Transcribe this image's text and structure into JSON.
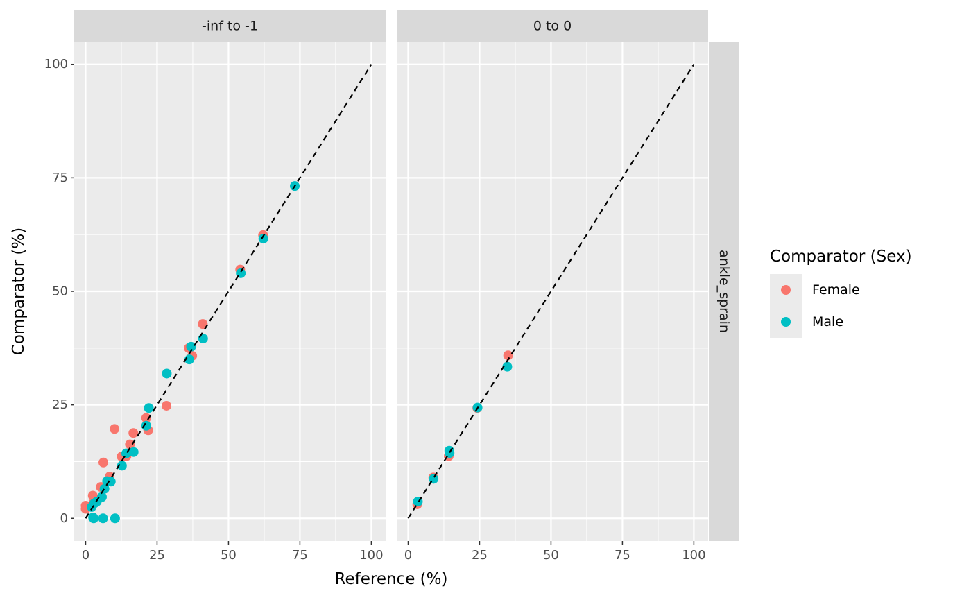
{
  "chart_data": {
    "type": "scatter",
    "xlabel": "Reference (%)",
    "ylabel": "Comparator (%)",
    "xlim": [
      -4,
      105
    ],
    "ylim": [
      -5,
      105
    ],
    "x_ticks": [
      0,
      25,
      50,
      75,
      100
    ],
    "y_ticks": [
      0,
      25,
      50,
      75,
      100
    ],
    "tick_labels": [
      "0",
      "25",
      "50",
      "75",
      "100"
    ],
    "grid": true,
    "reference_line": {
      "from": [
        0,
        0
      ],
      "to": [
        100,
        100
      ],
      "style": "dashed",
      "color": "#000000"
    },
    "row_strip": "ankle_sprain",
    "legend": {
      "title": "Comparator (Sex)",
      "placement": "right",
      "entries": [
        {
          "label": "Female",
          "color": "#F8766D"
        },
        {
          "label": "Male",
          "color": "#00BFC4"
        }
      ]
    },
    "panels": [
      {
        "strip": "-inf to -1",
        "series": [
          {
            "name": "Female",
            "color": "#F8766D",
            "points": [
              [
                0,
                2.8
              ],
              [
                0,
                2.1
              ],
              [
                2.5,
                5.0
              ],
              [
                2.9,
                3.6
              ],
              [
                5.3,
                6.9
              ],
              [
                6.2,
                12.3
              ],
              [
                8.4,
                9.2
              ],
              [
                10.1,
                19.7
              ],
              [
                12.6,
                13.6
              ],
              [
                14.3,
                13.7
              ],
              [
                15.5,
                16.3
              ],
              [
                16.7,
                18.8
              ],
              [
                21.2,
                22.1
              ],
              [
                21.9,
                19.4
              ],
              [
                28.3,
                24.8
              ],
              [
                36.1,
                37.5
              ],
              [
                37.3,
                35.8
              ],
              [
                41.0,
                42.8
              ],
              [
                54.1,
                54.8
              ],
              [
                62.1,
                62.4
              ]
            ]
          },
          {
            "name": "Male",
            "color": "#00BFC4",
            "points": [
              [
                2.1,
                2.5
              ],
              [
                2.6,
                0.2
              ],
              [
                2.8,
                0.0
              ],
              [
                3.0,
                3.3
              ],
              [
                3.9,
                3.7
              ],
              [
                5.7,
                4.7
              ],
              [
                6.1,
                0.0
              ],
              [
                6.6,
                6.5
              ],
              [
                7.5,
                8.2
              ],
              [
                8.8,
                8.1
              ],
              [
                10.3,
                0.0
              ],
              [
                12.7,
                11.6
              ],
              [
                14.2,
                14.3
              ],
              [
                16.8,
                14.6
              ],
              [
                21.2,
                20.4
              ],
              [
                22.1,
                24.3
              ],
              [
                28.4,
                31.9
              ],
              [
                36.3,
                35.0
              ],
              [
                36.9,
                37.8
              ],
              [
                41.1,
                39.6
              ],
              [
                54.3,
                54.0
              ],
              [
                62.2,
                61.6
              ],
              [
                73.2,
                73.2
              ]
            ]
          }
        ]
      },
      {
        "strip": "0 to 0",
        "series": [
          {
            "name": "Female",
            "color": "#F8766D",
            "points": [
              [
                3.2,
                3.1
              ],
              [
                8.8,
                9.0
              ],
              [
                14.2,
                13.7
              ],
              [
                24.2,
                24.3
              ],
              [
                35.0,
                35.9
              ]
            ]
          },
          {
            "name": "Male",
            "color": "#00BFC4",
            "points": [
              [
                3.4,
                3.7
              ],
              [
                8.9,
                8.7
              ],
              [
                14.4,
                14.9
              ],
              [
                14.5,
                14.4
              ],
              [
                24.3,
                24.4
              ],
              [
                34.7,
                33.4
              ]
            ]
          }
        ]
      }
    ]
  }
}
